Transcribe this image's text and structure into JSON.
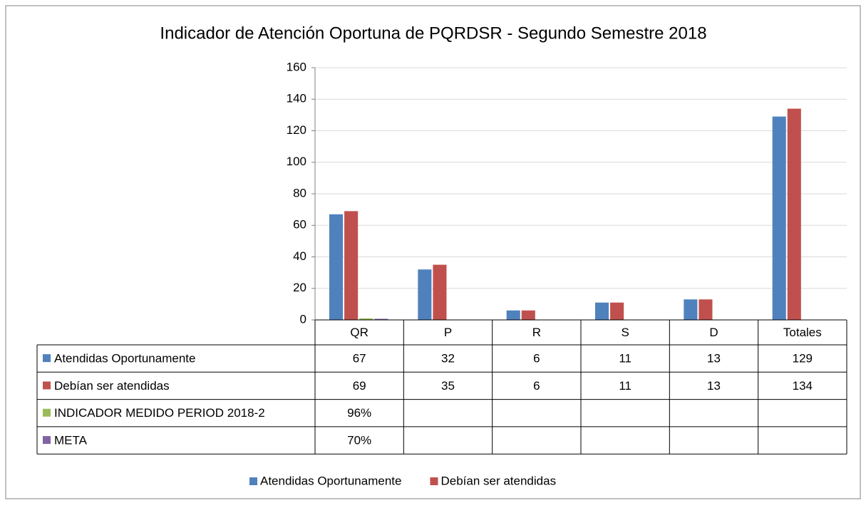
{
  "chart_data": {
    "type": "bar",
    "title": "Indicador de Atención Oportuna de PQRDSR - Segundo Semestre 2018",
    "categories": [
      "QR",
      "P",
      "R",
      "S",
      "D",
      "Totales"
    ],
    "series": [
      {
        "name": "Atendidas Oportunamente",
        "color": "#4f81bd",
        "values": [
          67,
          32,
          6,
          11,
          13,
          129
        ]
      },
      {
        "name": "Debían ser atendidas",
        "color": "#c0504d",
        "values": [
          69,
          35,
          6,
          11,
          13,
          134
        ]
      },
      {
        "name": "INDICADOR MEDIDO PERIOD 2018-2",
        "color": "#9bbb59",
        "values": [
          0.96,
          null,
          null,
          null,
          null,
          null
        ],
        "value_labels": [
          "96%",
          null,
          null,
          null,
          null,
          null
        ]
      },
      {
        "name": "META",
        "color": "#8064a2",
        "values": [
          0.7,
          null,
          null,
          null,
          null,
          null
        ],
        "value_labels": [
          "70%",
          null,
          null,
          null,
          null,
          null
        ]
      }
    ],
    "ylim": [
      0,
      160
    ],
    "yticks": [
      0,
      20,
      40,
      60,
      80,
      100,
      120,
      140,
      160
    ],
    "grid": true
  }
}
